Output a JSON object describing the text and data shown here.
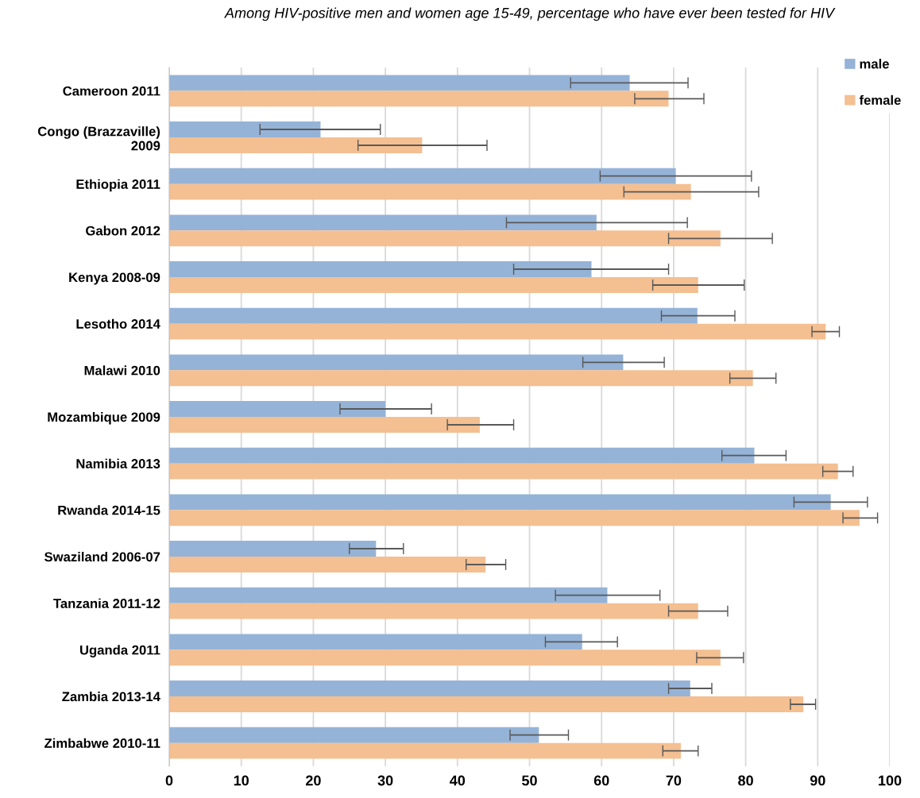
{
  "chart_data": {
    "type": "bar",
    "orientation": "horizontal",
    "title": "Among HIV-positive men and women age 15-49, percentage who have ever been tested for HIV",
    "categories": [
      "Cameroon 2011",
      "Congo (Brazzaville)\n2009",
      "Ethiopia 2011",
      "Gabon 2012",
      "Kenya 2008-09",
      "Lesotho 2014",
      "Malawi 2010",
      "Mozambique 2009",
      "Namibia 2013",
      "Rwanda 2014-15",
      "Swaziland 2006-07",
      "Tanzania 2011-12",
      "Uganda 2011",
      "Zambia 2013-14",
      "Zimbabwe 2010-11"
    ],
    "series": [
      {
        "name": "male",
        "color": "#95b3d7",
        "values": [
          63.9,
          21.0,
          70.3,
          59.3,
          58.6,
          73.3,
          63.0,
          30.0,
          81.2,
          91.8,
          28.7,
          60.8,
          57.3,
          72.3,
          51.3
        ],
        "errors": [
          [
            55.7,
            72.0
          ],
          [
            12.6,
            29.3
          ],
          [
            59.8,
            80.8
          ],
          [
            46.8,
            71.9
          ],
          [
            47.8,
            69.3
          ],
          [
            68.3,
            78.5
          ],
          [
            57.4,
            68.7
          ],
          [
            23.7,
            36.4
          ],
          [
            76.7,
            85.6
          ],
          [
            86.7,
            96.9
          ],
          [
            25.0,
            32.5
          ],
          [
            53.6,
            68.1
          ],
          [
            52.2,
            62.2
          ],
          [
            69.3,
            75.3
          ],
          [
            47.3,
            55.4
          ]
        ]
      },
      {
        "name": "female",
        "color": "#f4bf91",
        "values": [
          69.3,
          35.1,
          72.4,
          76.5,
          73.4,
          91.1,
          81.0,
          43.1,
          92.8,
          95.8,
          43.9,
          73.4,
          76.5,
          88.0,
          71.0
        ],
        "errors": [
          [
            64.6,
            74.2
          ],
          [
            26.2,
            44.1
          ],
          [
            63.1,
            81.8
          ],
          [
            69.3,
            83.7
          ],
          [
            67.1,
            79.8
          ],
          [
            89.2,
            93.0
          ],
          [
            77.8,
            84.2
          ],
          [
            38.6,
            47.8
          ],
          [
            90.7,
            94.9
          ],
          [
            93.5,
            98.3
          ],
          [
            41.2,
            46.7
          ],
          [
            69.3,
            77.5
          ],
          [
            73.2,
            79.7
          ],
          [
            86.2,
            89.7
          ],
          [
            68.5,
            73.4
          ]
        ]
      }
    ],
    "xlim": [
      0,
      100
    ],
    "xticks": [
      0,
      10,
      20,
      30,
      40,
      50,
      60,
      70,
      80,
      90,
      100
    ],
    "grid": "x",
    "legend": "top right"
  }
}
